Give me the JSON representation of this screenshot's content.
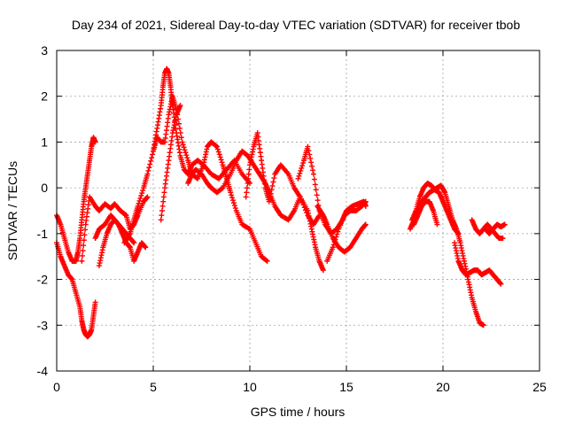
{
  "chart_data": {
    "type": "scatter",
    "title": "Day 234 of 2021, Sidereal Day-to-day VTEC variation (SDTVAR) for receiver tbob",
    "xlabel": "GPS time / hours",
    "ylabel": "SDTVAR / TECUs",
    "xlim": [
      0,
      25
    ],
    "ylim": [
      -4,
      3
    ],
    "x_ticks": [
      0,
      5,
      10,
      15,
      20,
      25
    ],
    "y_ticks": [
      -4,
      -3,
      -2,
      -1,
      0,
      1,
      2,
      3
    ],
    "x_tick_labels": [
      "0",
      "5",
      "10",
      "15",
      "20",
      "25"
    ],
    "y_tick_labels": [
      "-4",
      "-3",
      "-2",
      "-1",
      "0",
      "1",
      "2",
      "3"
    ],
    "grid": true,
    "marker": "plus",
    "color": "#ff0000",
    "series": [
      {
        "name": "s1",
        "x": [
          0.0,
          0.2,
          0.4,
          0.6,
          0.8,
          1.0,
          1.2,
          1.3,
          1.4,
          1.5,
          1.6,
          1.7,
          1.8,
          1.9,
          2.0
        ],
        "y": [
          -1.2,
          -1.5,
          -1.7,
          -1.9,
          -2.0,
          -2.3,
          -2.6,
          -2.9,
          -3.1,
          -3.2,
          -3.25,
          -3.2,
          -3.1,
          -2.8,
          -2.5
        ]
      },
      {
        "name": "s2",
        "x": [
          0.0,
          0.2,
          0.4,
          0.6,
          0.8,
          1.0,
          1.1,
          1.2,
          1.3,
          1.4,
          1.5,
          1.6,
          1.7,
          1.8,
          1.9,
          2.0
        ],
        "y": [
          -0.6,
          -0.8,
          -1.1,
          -1.4,
          -1.6,
          -1.6,
          -1.4,
          -1.1,
          -0.7,
          -0.3,
          0.0,
          0.3,
          0.6,
          0.9,
          1.1,
          1.0
        ]
      },
      {
        "name": "s3",
        "x": [
          1.3,
          1.5,
          1.7,
          2.0,
          2.2,
          2.5,
          2.8,
          3.0,
          3.3,
          3.6,
          3.8,
          4.0,
          4.2,
          4.5,
          4.7
        ],
        "y": [
          -1.6,
          -0.8,
          -0.2,
          -0.4,
          -0.5,
          -0.35,
          -0.45,
          -0.35,
          -0.5,
          -0.6,
          -0.9,
          -0.8,
          -0.6,
          -0.3,
          -0.2
        ]
      },
      {
        "name": "s4",
        "x": [
          2.0,
          2.2,
          2.5,
          2.8,
          3.0,
          3.2,
          3.4,
          3.6,
          3.8,
          4.0,
          4.2,
          4.4,
          4.6
        ],
        "y": [
          -1.1,
          -0.9,
          -0.8,
          -0.6,
          -0.7,
          -0.8,
          -1.0,
          -1.2,
          -1.3,
          -1.6,
          -1.4,
          -1.2,
          -1.3
        ]
      },
      {
        "name": "s5",
        "x": [
          2.2,
          2.4,
          2.6,
          2.8,
          3.0,
          3.2,
          3.4,
          3.6,
          3.8,
          4.0
        ],
        "y": [
          -1.7,
          -1.3,
          -1.0,
          -0.8,
          -0.7,
          -0.8,
          -0.9,
          -1.0,
          -1.1,
          -1.2
        ]
      },
      {
        "name": "s6",
        "x": [
          3.5,
          3.8,
          4.0,
          4.2,
          4.5,
          4.7,
          5.0,
          5.2,
          5.4,
          5.5,
          5.6,
          5.7,
          5.8,
          5.9,
          6.0,
          6.2,
          6.4,
          6.6,
          6.8,
          7.0,
          7.3,
          7.6,
          8.0,
          8.4,
          8.8,
          9.2,
          9.6,
          10.0
        ],
        "y": [
          -1.2,
          -1.0,
          -0.7,
          -0.4,
          0.0,
          0.3,
          0.8,
          1.3,
          1.8,
          2.2,
          2.5,
          2.6,
          2.5,
          2.2,
          1.8,
          1.2,
          0.7,
          0.4,
          0.3,
          0.5,
          0.6,
          0.5,
          0.3,
          0.2,
          0.4,
          0.6,
          0.3,
          0.1
        ]
      },
      {
        "name": "s7",
        "x": [
          5.0,
          5.2,
          5.4,
          5.6,
          5.8,
          6.0,
          6.2,
          6.5,
          6.8,
          7.0,
          7.3,
          7.6,
          7.8,
          8.0,
          8.3,
          8.6,
          8.8,
          9.0,
          9.3,
          9.6,
          10.0,
          10.3,
          10.6,
          10.9
        ],
        "y": [
          0.8,
          1.1,
          1.0,
          1.0,
          1.6,
          2.0,
          1.7,
          1.0,
          0.6,
          0.3,
          0.2,
          0.5,
          0.9,
          1.0,
          0.9,
          0.5,
          0.2,
          -0.1,
          -0.5,
          -0.8,
          -0.9,
          -1.2,
          -1.5,
          -1.6
        ]
      },
      {
        "name": "s8",
        "x": [
          5.4,
          5.6,
          5.8,
          6.0,
          6.2,
          6.4
        ],
        "y": [
          -0.7,
          0.0,
          0.6,
          1.2,
          1.6,
          1.8
        ]
      },
      {
        "name": "s9",
        "x": [
          6.8,
          7.0,
          7.2,
          7.5,
          7.8,
          8.0,
          8.3,
          8.6,
          9.0,
          9.3,
          9.6,
          9.9,
          10.2,
          10.5,
          10.8,
          11.0,
          11.3,
          11.6,
          12.0,
          12.3,
          12.6,
          13.0,
          13.3,
          13.6
        ],
        "y": [
          0.1,
          0.3,
          0.4,
          0.3,
          0.1,
          0.0,
          -0.1,
          0.0,
          0.3,
          0.6,
          0.8,
          0.7,
          0.5,
          0.3,
          0.1,
          -0.1,
          -0.4,
          -0.6,
          -0.7,
          -0.5,
          -0.2,
          -0.6,
          -0.8,
          -0.6
        ]
      },
      {
        "name": "s10",
        "x": [
          9.8,
          10.0,
          10.2,
          10.4,
          10.6,
          10.8,
          11.0,
          11.3,
          11.6,
          12.0,
          12.3,
          12.6,
          13.0,
          13.2,
          13.4,
          13.6,
          13.8
        ],
        "y": [
          -0.2,
          0.5,
          0.9,
          1.2,
          0.6,
          0.0,
          -0.3,
          0.3,
          0.5,
          0.3,
          0.0,
          -0.2,
          -0.5,
          -0.9,
          -1.3,
          -1.6,
          -1.8
        ]
      },
      {
        "name": "s11",
        "x": [
          12.5,
          12.8,
          13.0,
          13.3,
          13.6,
          13.9,
          14.2,
          14.5,
          14.8,
          15.0,
          15.3,
          15.6,
          15.9,
          16.0
        ],
        "y": [
          0.2,
          0.6,
          0.9,
          0.3,
          -0.5,
          -0.8,
          -1.0,
          -0.9,
          -0.7,
          -0.5,
          -0.4,
          -0.35,
          -0.3,
          -0.4
        ]
      },
      {
        "name": "s12",
        "x": [
          13.5,
          13.8,
          14.0,
          14.3,
          14.6,
          14.9,
          15.2,
          15.5,
          15.8,
          16.0
        ],
        "y": [
          -0.4,
          -0.6,
          -0.8,
          -1.1,
          -1.3,
          -1.4,
          -1.3,
          -1.1,
          -0.9,
          -0.8
        ]
      },
      {
        "name": "s13",
        "x": [
          14.0,
          14.3,
          14.6,
          14.9,
          15.2,
          15.5,
          15.8,
          16.0
        ],
        "y": [
          -1.6,
          -1.3,
          -0.9,
          -0.6,
          -0.5,
          -0.5,
          -0.4,
          -0.3
        ]
      },
      {
        "name": "s14",
        "x": [
          18.3,
          18.5,
          18.7,
          18.9,
          19.1,
          19.3,
          19.5,
          19.7,
          19.9,
          20.1,
          20.3,
          20.5,
          20.7,
          20.9,
          21.1,
          21.3,
          21.5,
          21.7,
          21.9,
          22.1
        ],
        "y": [
          -0.9,
          -0.7,
          -0.5,
          -0.3,
          -0.2,
          -0.1,
          -0.05,
          0.0,
          0.05,
          -0.1,
          -0.4,
          -0.7,
          -0.9,
          -1.2,
          -1.6,
          -2.0,
          -2.4,
          -2.7,
          -2.95,
          -3.0
        ]
      },
      {
        "name": "s15",
        "x": [
          18.4,
          18.6,
          18.8,
          19.0,
          19.2,
          19.4,
          19.6,
          19.8,
          20.0,
          20.2,
          20.4,
          20.6,
          20.8
        ],
        "y": [
          -0.7,
          -0.5,
          -0.2,
          0.0,
          0.1,
          0.05,
          -0.05,
          -0.1,
          -0.3,
          -0.5,
          -0.7,
          -0.9,
          -1.0
        ]
      },
      {
        "name": "s16",
        "x": [
          18.5,
          18.7,
          18.9,
          19.1,
          19.3,
          19.5,
          19.7
        ],
        "y": [
          -0.8,
          -0.6,
          -0.4,
          -0.3,
          -0.3,
          -0.5,
          -0.8
        ]
      },
      {
        "name": "s17",
        "x": [
          20.6,
          20.8,
          21.0,
          21.2,
          21.4,
          21.6,
          21.8,
          22.0,
          22.2,
          22.4,
          22.6,
          22.8,
          23.0
        ],
        "y": [
          -1.2,
          -1.6,
          -1.8,
          -1.9,
          -1.85,
          -1.8,
          -1.8,
          -1.9,
          -1.85,
          -1.8,
          -1.9,
          -2.0,
          -2.1
        ]
      },
      {
        "name": "s18",
        "x": [
          21.5,
          21.7,
          21.9,
          22.1,
          22.3,
          22.5,
          22.7,
          22.9,
          23.1
        ],
        "y": [
          -0.7,
          -0.9,
          -1.0,
          -0.9,
          -0.8,
          -0.9,
          -1.0,
          -1.1,
          -1.1
        ]
      },
      {
        "name": "s19",
        "x": [
          22.2,
          22.4,
          22.6,
          22.8,
          23.0,
          23.2
        ],
        "y": [
          -0.9,
          -1.0,
          -0.9,
          -0.8,
          -0.85,
          -0.8
        ]
      }
    ]
  }
}
